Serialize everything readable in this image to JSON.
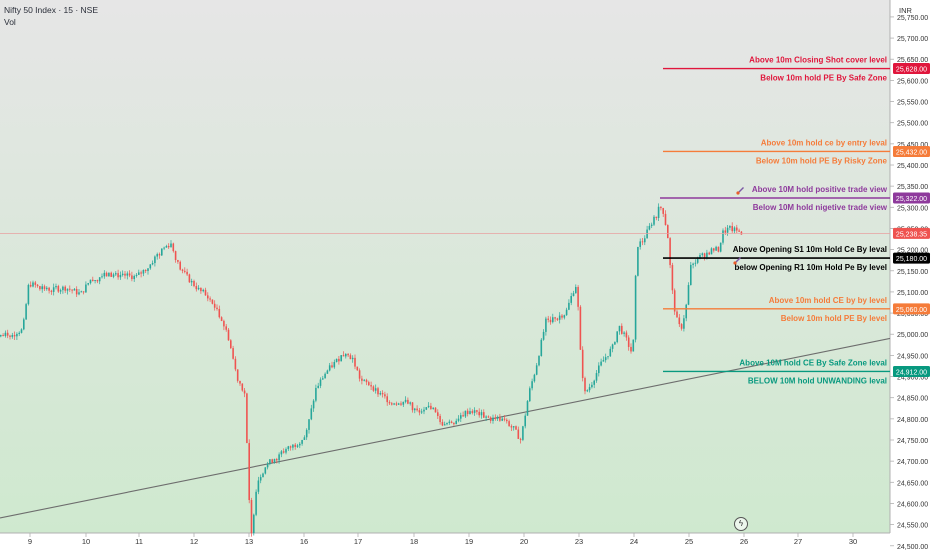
{
  "header": {
    "title": "Nifty 50 Index · 15 · NSE",
    "indicator": "Vol",
    "currency": "INR"
  },
  "icons": {
    "bolt": "lightning-bolt-icon",
    "rocket": "rocket-icon"
  },
  "colors": {
    "up": "#26a69a",
    "down": "#ef5350",
    "red": "#e0163c",
    "orange": "#f57c3a",
    "purple": "#8e3a9c",
    "black": "#000000",
    "teal": "#08997f",
    "current": "#ef5350"
  },
  "chart_data": {
    "type": "candlestick",
    "symbol": "Nifty 50 Index",
    "interval": "15",
    "exchange": "NSE",
    "ylim": [
      24490,
      25790
    ],
    "y_ticks": [
      "25,750.00",
      "25,700.00",
      "25,650.00",
      "25,600.00",
      "25,550.00",
      "25,500.00",
      "25,450.00",
      "25,400.00",
      "25,350.00",
      "25,300.00",
      "25,250.00",
      "25,200.00",
      "25,150.00",
      "25,100.00",
      "25,050.00",
      "25,000.00",
      "24,950.00",
      "24,900.00",
      "24,850.00",
      "24,800.00",
      "24,750.00",
      "24,700.00",
      "24,650.00",
      "24,600.00",
      "24,550.00",
      "24,500.00"
    ],
    "x_ticks": [
      "9",
      "10",
      "11",
      "12",
      "13",
      "16",
      "17",
      "18",
      "19",
      "20",
      "23",
      "24",
      "25",
      "26",
      "27",
      "30"
    ],
    "current_price": {
      "value": 25238.35,
      "label": "25,238.35"
    },
    "path": [
      [
        0,
        24995
      ],
      [
        22,
        25010
      ],
      [
        28,
        25120
      ],
      [
        35,
        25115
      ],
      [
        50,
        25105
      ],
      [
        65,
        25110
      ],
      [
        80,
        25095
      ],
      [
        90,
        25130
      ],
      [
        105,
        25140
      ],
      [
        120,
        25140
      ],
      [
        135,
        25135
      ],
      [
        148,
        25160
      ],
      [
        160,
        25200
      ],
      [
        170,
        25215
      ],
      [
        178,
        25160
      ],
      [
        188,
        25130
      ],
      [
        198,
        25105
      ],
      [
        210,
        25080
      ],
      [
        220,
        25040
      ],
      [
        228,
        24990
      ],
      [
        236,
        24900
      ],
      [
        244,
        24860
      ],
      [
        250,
        24510
      ],
      [
        256,
        24650
      ],
      [
        265,
        24690
      ],
      [
        280,
        24720
      ],
      [
        295,
        24740
      ],
      [
        305,
        24760
      ],
      [
        315,
        24870
      ],
      [
        325,
        24910
      ],
      [
        335,
        24935
      ],
      [
        345,
        24960
      ],
      [
        352,
        24940
      ],
      [
        360,
        24890
      ],
      [
        370,
        24880
      ],
      [
        378,
        24860
      ],
      [
        390,
        24840
      ],
      [
        405,
        24840
      ],
      [
        420,
        24810
      ],
      [
        430,
        24830
      ],
      [
        440,
        24790
      ],
      [
        452,
        24790
      ],
      [
        460,
        24810
      ],
      [
        470,
        24820
      ],
      [
        480,
        24810
      ],
      [
        490,
        24800
      ],
      [
        500,
        24800
      ],
      [
        512,
        24780
      ],
      [
        520,
        24750
      ],
      [
        528,
        24860
      ],
      [
        535,
        24920
      ],
      [
        545,
        25030
      ],
      [
        555,
        25040
      ],
      [
        565,
        25050
      ],
      [
        572,
        25100
      ],
      [
        576,
        25120
      ],
      [
        580,
        24940
      ],
      [
        584,
        24860
      ],
      [
        590,
        24880
      ],
      [
        600,
        24930
      ],
      [
        612,
        24970
      ],
      [
        618,
        25020
      ],
      [
        625,
        24990
      ],
      [
        632,
        24950
      ],
      [
        636,
        25210
      ],
      [
        642,
        25220
      ],
      [
        648,
        25250
      ],
      [
        655,
        25280
      ],
      [
        660,
        25310
      ],
      [
        663,
        25285
      ],
      [
        667,
        25230
      ],
      [
        671,
        25110
      ],
      [
        675,
        25040
      ],
      [
        680,
        25010
      ],
      [
        685,
        25060
      ],
      [
        690,
        25160
      ],
      [
        697,
        25180
      ],
      [
        705,
        25190
      ],
      [
        712,
        25200
      ],
      [
        718,
        25200
      ],
      [
        722,
        25240
      ],
      [
        728,
        25250
      ],
      [
        735,
        25245
      ],
      [
        742,
        25240
      ]
    ],
    "trendline": {
      "from": {
        "date": "9",
        "value": 24580
      },
      "to": {
        "date": "30",
        "value": 24990
      }
    },
    "levels": [
      {
        "value": 25628.0,
        "label": "25,628.00",
        "color": "red",
        "above": "Above 10m Closing Shot cover level",
        "below": "Below 10m hold PE By Safe Zone"
      },
      {
        "value": 25432.0,
        "label": "25,432.00",
        "color": "orange",
        "above": "Above 10m hold ce by entry leval",
        "below": "Below 10m hold PE By Risky Zone"
      },
      {
        "value": 25322.0,
        "label": "25,322.00",
        "color": "purple",
        "above": "Above 10M hold positive trade view",
        "below": "Below 10M hold nigetive trade view"
      },
      {
        "value": 25180.0,
        "label": "25,180.00",
        "color": "black",
        "above": "Above Opening S1 10m Hold Ce By leval",
        "below": "below Opening R1 10m Hold Pe By level"
      },
      {
        "value": 25060.0,
        "label": "25,060.00",
        "color": "orange",
        "above": "Above 10m hold CE by by level",
        "below": "Below 10m hold PE By level"
      },
      {
        "value": 24912.0,
        "label": "24,912.00",
        "color": "teal",
        "above": "Above 10M hold CE By Safe Zone leval",
        "below": "BELOW 10M hold UNWANDING leval"
      }
    ]
  }
}
